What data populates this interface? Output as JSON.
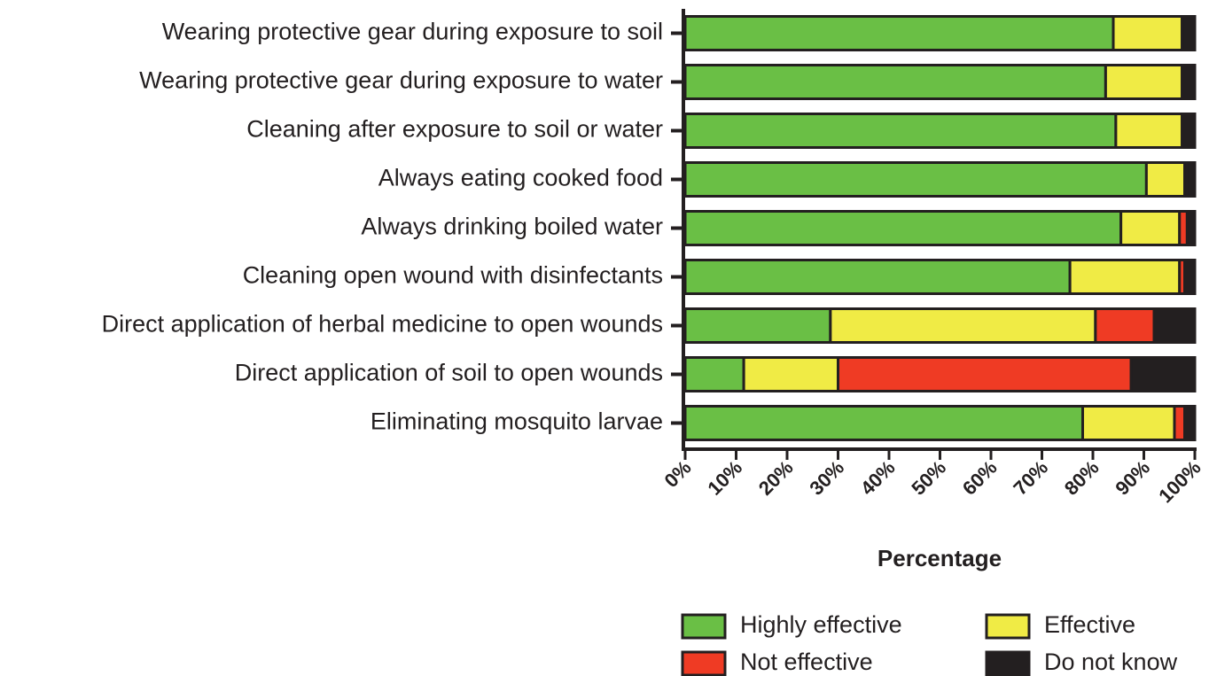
{
  "chart_data": {
    "type": "stacked_bar_horizontal",
    "categories": [
      "Wearing protective gear during exposure to soil",
      "Wearing protective gear during exposure to water",
      "Cleaning after exposure to soil or water",
      "Always eating cooked food",
      "Always drinking boiled water",
      "Cleaning open wound with disinfectants",
      "Direct application of herbal medicine to open wounds",
      "Direct application of soil to open wounds",
      "Eliminating mosquito larvae"
    ],
    "series": [
      {
        "name": "Highly effective",
        "color": "#6abf45",
        "values": [
          84,
          82.5,
          84.5,
          90.5,
          85.5,
          75.5,
          28.5,
          11.5,
          78
        ]
      },
      {
        "name": "Effective",
        "color": "#f0eb45",
        "values": [
          13.5,
          15,
          13,
          7.5,
          11.5,
          21.5,
          52,
          18.5,
          18
        ]
      },
      {
        "name": "Not effective",
        "color": "#ef3b24",
        "values": [
          0,
          0.5,
          0.5,
          0.5,
          1.5,
          1,
          11.5,
          57.5,
          2
        ]
      },
      {
        "name": "Do not know",
        "color": "#231f20",
        "values": [
          2.5,
          2,
          2,
          1.5,
          1.5,
          2,
          8,
          12.5,
          2
        ]
      }
    ],
    "xlabel": "Percentage",
    "xlim": [
      0,
      100
    ],
    "xticks": [
      {
        "value": 0,
        "label": "0%"
      },
      {
        "value": 10,
        "label": "10%"
      },
      {
        "value": 20,
        "label": "20%"
      },
      {
        "value": 30,
        "label": "30%"
      },
      {
        "value": 40,
        "label": "40%"
      },
      {
        "value": 50,
        "label": "50%"
      },
      {
        "value": 60,
        "label": "60%"
      },
      {
        "value": 70,
        "label": "70%"
      },
      {
        "value": 80,
        "label": "80%"
      },
      {
        "value": 90,
        "label": "90%"
      },
      {
        "value": 100,
        "label": "100%"
      }
    ],
    "legend": "bottom-right"
  }
}
